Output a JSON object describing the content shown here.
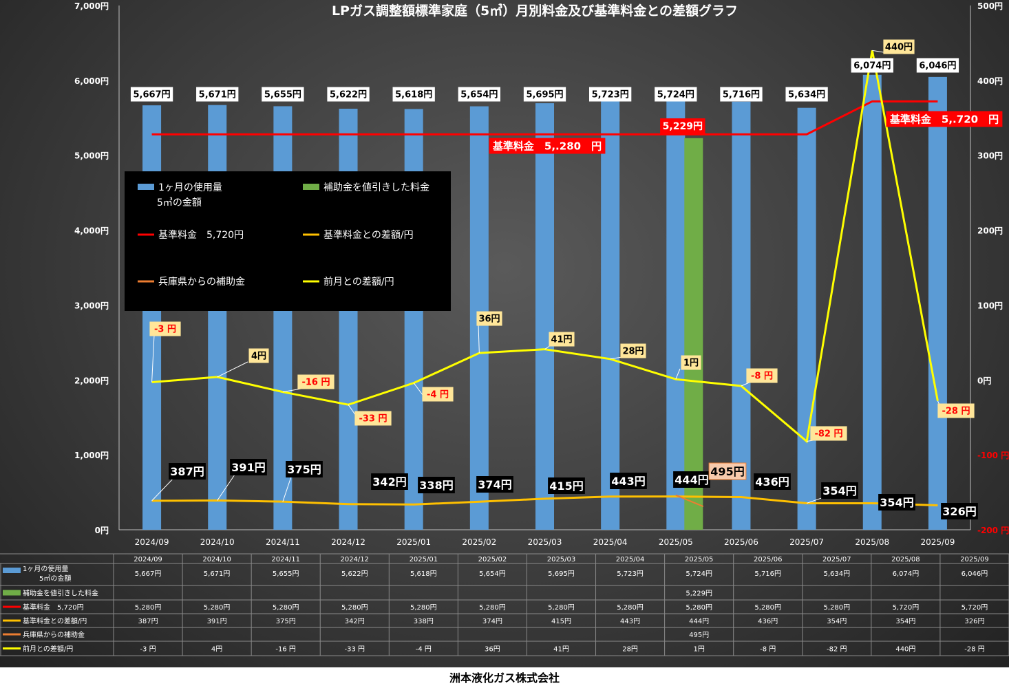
{
  "chart_data": {
    "type": "bar",
    "title": "LPガス調整額標準家庭（5㎥）月別料金及び基準料金との差額グラフ",
    "categories": [
      "2024/09",
      "2024/10",
      "2024/11",
      "2024/12",
      "2025/01",
      "2025/02",
      "2025/03",
      "2025/04",
      "2025/05",
      "2025/06",
      "2025/07",
      "2025/08",
      "2025/09"
    ],
    "y_left": {
      "min": 0,
      "max": 7000,
      "step": 1000,
      "tick_labels": [
        "0円",
        "1,000円",
        "2,000円",
        "3,000円",
        "4,000円",
        "5,000円",
        "6,000円",
        "7,000円"
      ]
    },
    "y_right": {
      "min": -200,
      "max": 500,
      "step": 100,
      "tick_labels": [
        "-200 円",
        "-100 円",
        "0円",
        "100円",
        "200円",
        "300円",
        "400円",
        "500円"
      ]
    },
    "series": [
      {
        "name": "1ヶ月の使用量\n5㎥の金額",
        "type": "bar",
        "axis": "left",
        "color": "#5b9bd5",
        "values": [
          5667,
          5671,
          5655,
          5622,
          5618,
          5654,
          5695,
          5723,
          5724,
          5716,
          5634,
          6074,
          6046
        ],
        "labels": [
          "5,667円",
          "5,671円",
          "5,655円",
          "5,622円",
          "5,618円",
          "5,654円",
          "5,695円",
          "5,723円",
          "5,724円",
          "5,716円",
          "5,634円",
          "6,074円",
          "6,046円"
        ]
      },
      {
        "name": "補助金を値引きした料金",
        "type": "bar",
        "axis": "left",
        "color": "#70ad47",
        "values": [
          null,
          null,
          null,
          null,
          null,
          null,
          null,
          null,
          5229,
          null,
          null,
          null,
          null
        ],
        "labels": [
          "",
          "",
          "",
          "",
          "",
          "",
          "",
          "",
          "5,229円",
          "",
          "",
          "",
          ""
        ]
      },
      {
        "name": "基準料金　5,720円",
        "type": "line",
        "axis": "left",
        "color": "#ff0000",
        "values": [
          5280,
          5280,
          5280,
          5280,
          5280,
          5280,
          5280,
          5280,
          5280,
          5280,
          5280,
          5720,
          5720
        ],
        "labels": [
          "5,280円",
          "5,280円",
          "5,280円",
          "5,280円",
          "5,280円",
          "5,280円",
          "5,280円",
          "5,280円",
          "5,280円",
          "5,280円",
          "5,280円",
          "5,720円",
          "5,720円"
        ]
      },
      {
        "name": "基準料金との差額/円",
        "type": "line",
        "axis": "left",
        "color": "#ffc000",
        "values": [
          387,
          391,
          375,
          342,
          338,
          374,
          415,
          443,
          444,
          436,
          354,
          354,
          326
        ],
        "labels": [
          "387円",
          "391円",
          "375円",
          "342円",
          "338円",
          "374円",
          "415円",
          "443円",
          "444円",
          "436円",
          "354円",
          "354円",
          "326円"
        ]
      },
      {
        "name": "兵庫県からの補助金",
        "type": "line",
        "axis": "left",
        "color": "#ed7d31",
        "values": [
          null,
          null,
          null,
          null,
          null,
          null,
          null,
          null,
          495,
          null,
          null,
          null,
          null
        ],
        "labels": [
          "",
          "",
          "",
          "",
          "",
          "",
          "",
          "",
          "495円",
          "",
          "",
          "",
          ""
        ]
      },
      {
        "name": "前月との差額/円",
        "type": "line",
        "axis": "right",
        "color": "#ffff00",
        "values": [
          -3,
          4,
          -16,
          -33,
          -4,
          36,
          41,
          28,
          1,
          -8,
          -82,
          440,
          -28
        ],
        "labels": [
          "-3 円",
          "4円",
          "-16 円",
          "-33 円",
          "-4 円",
          "36円",
          "41円",
          "28円",
          "1円",
          "-8 円",
          "-82 円",
          "440円",
          "-28 円"
        ]
      }
    ],
    "annotations": [
      {
        "text": "基準料金　5,.280　円"
      },
      {
        "text": "基準料金　5,.720　円"
      }
    ],
    "legend_position": "upper-left (inside plot)",
    "grid": false,
    "data_table_shown": true
  },
  "footer": {
    "company": "洲本液化ガス株式会社"
  }
}
